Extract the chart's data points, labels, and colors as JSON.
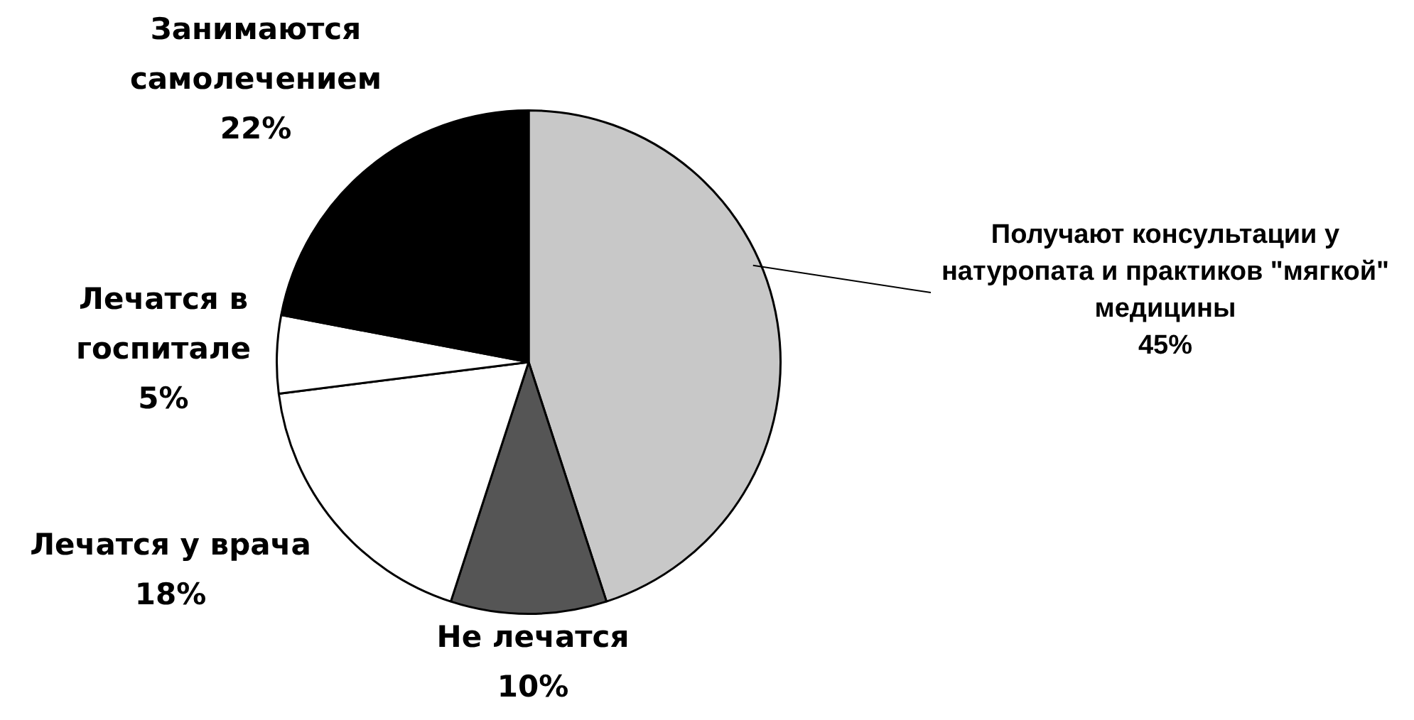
{
  "chart_data": {
    "type": "pie",
    "categories": [
      "Получают консультации у натуропата и практиков \"мягкой\" медицины",
      "Не лечатся",
      "Лечатся у врача",
      "Лечатся в госпитале",
      "Занимаются самолечением"
    ],
    "values": [
      45,
      10,
      18,
      5,
      22
    ],
    "value_labels": [
      "45%",
      "10%",
      "18%",
      "5%",
      "22%"
    ],
    "colors": [
      "#c8c8c8",
      "#555555",
      "#ffffff",
      "#ffffff",
      "#000000"
    ],
    "legend": false
  }
}
